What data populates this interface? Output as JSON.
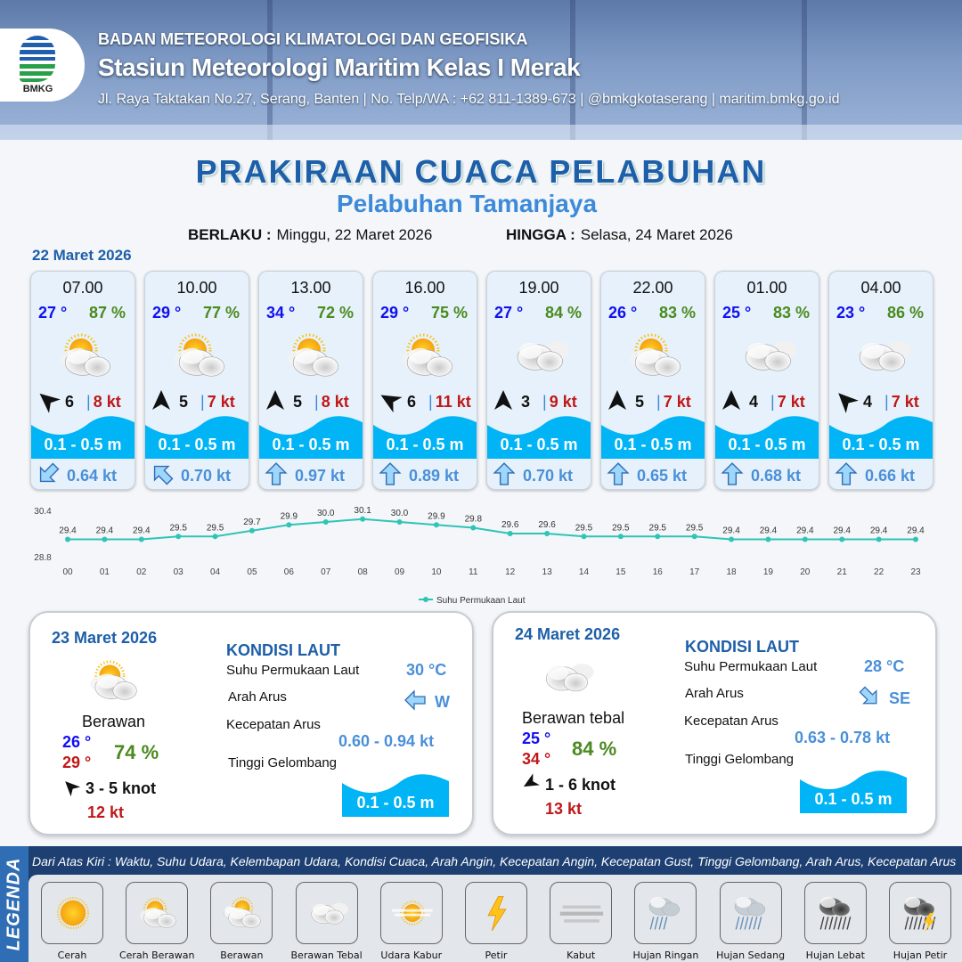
{
  "header": {
    "agency": "BADAN METEOROLOGI KLIMATOLOGI DAN GEOFISIKA",
    "station": "Stasiun Meteorologi Maritim Kelas I Merak",
    "address": "Jl. Raya Taktakan No.27, Serang, Banten | No. Telp/WA : +62 811-1389-673 | @bmkgkotaserang | maritim.bmkg.go.id",
    "logo_text": "BMKG"
  },
  "title": "PRAKIRAAN CUACA PELABUHAN",
  "subtitle": "Pelabuhan Tamanjaya",
  "validity": {
    "from_label": "BERLAKU :",
    "from": "Minggu, 22 Maret 2026",
    "to_label": "HINGGA :",
    "to": "Selasa, 24 Maret 2026"
  },
  "day1": {
    "date": "22 Maret 2026",
    "cards": [
      {
        "time": "07.00",
        "temp": "27 °",
        "rh": "87 %",
        "icon": "cerah-berawan",
        "wind_dir_deg": -50,
        "wind": "6",
        "gust": "8 kt",
        "wave": "0.1 - 0.5 m",
        "current_dir_deg": 225,
        "current": "0.64 kt"
      },
      {
        "time": "10.00",
        "temp": "29 °",
        "rh": "77 %",
        "icon": "cerah-berawan",
        "wind_dir_deg": 0,
        "wind": "5",
        "gust": "7 kt",
        "wave": "0.1 - 0.5 m",
        "current_dir_deg": 315,
        "current": "0.70 kt"
      },
      {
        "time": "13.00",
        "temp": "34 °",
        "rh": "72 %",
        "icon": "cerah-berawan",
        "wind_dir_deg": 0,
        "wind": "5",
        "gust": "8 kt",
        "wave": "0.1 - 0.5 m",
        "current_dir_deg": 0,
        "current": "0.97 kt"
      },
      {
        "time": "16.00",
        "temp": "29 °",
        "rh": "75 %",
        "icon": "cerah-berawan",
        "wind_dir_deg": -60,
        "wind": "6",
        "gust": "11 kt",
        "wave": "0.1 - 0.5 m",
        "current_dir_deg": 0,
        "current": "0.89 kt"
      },
      {
        "time": "19.00",
        "temp": "27 °",
        "rh": "84 %",
        "icon": "berawan-tebal",
        "wind_dir_deg": 0,
        "wind": "3",
        "gust": "9 kt",
        "wave": "0.1 - 0.5 m",
        "current_dir_deg": 0,
        "current": "0.70 kt"
      },
      {
        "time": "22.00",
        "temp": "26 °",
        "rh": "83 %",
        "icon": "cerah-berawan",
        "wind_dir_deg": 0,
        "wind": "5",
        "gust": "7 kt",
        "wave": "0.1 - 0.5 m",
        "current_dir_deg": 0,
        "current": "0.65 kt"
      },
      {
        "time": "01.00",
        "temp": "25 °",
        "rh": "83 %",
        "icon": "berawan-tebal",
        "wind_dir_deg": 0,
        "wind": "4",
        "gust": "7 kt",
        "wave": "0.1 - 0.5 m",
        "current_dir_deg": 0,
        "current": "0.68 kt"
      },
      {
        "time": "04.00",
        "temp": "23 °",
        "rh": "86 %",
        "icon": "berawan-tebal",
        "wind_dir_deg": -45,
        "wind": "4",
        "gust": "7 kt",
        "wave": "0.1 - 0.5 m",
        "current_dir_deg": 0,
        "current": "0.66 kt"
      }
    ]
  },
  "chart_data": {
    "type": "line",
    "x": [
      "00",
      "01",
      "02",
      "03",
      "04",
      "05",
      "06",
      "07",
      "08",
      "09",
      "10",
      "11",
      "12",
      "13",
      "14",
      "15",
      "16",
      "17",
      "18",
      "19",
      "20",
      "21",
      "22",
      "23"
    ],
    "series": [
      {
        "name": "Suhu Permukaan Laut",
        "values": [
          29.4,
          29.4,
          29.4,
          29.5,
          29.5,
          29.7,
          29.9,
          30.0,
          30.1,
          30.0,
          29.9,
          29.8,
          29.6,
          29.6,
          29.5,
          29.5,
          29.5,
          29.5,
          29.4,
          29.4,
          29.4,
          29.4,
          29.4,
          29.4
        ],
        "color": "#2ec4b6"
      }
    ],
    "ylim": [
      28.8,
      30.4
    ],
    "yticks": [
      "30.4",
      "28.8"
    ],
    "legend": "bottom",
    "grid": false
  },
  "panels": [
    {
      "date": "23 Maret 2026",
      "icon": "cerah-berawan",
      "condition": "Berawan",
      "tmin": "26 °",
      "tmax": "29 °",
      "rh": "74 %",
      "wind_dir_deg": -45,
      "wind": "3  - 5 knot",
      "gust": "12 kt",
      "sea_title": "KONDISI LAUT",
      "sst_label": "Suhu Permukaan Laut",
      "sst": "30 °C",
      "cur_dir_label": "Arah Arus",
      "cur_dir": "W",
      "cur_dir_deg": 270,
      "cur_speed_label": "Kecepatan Arus",
      "cur_speed": "0.60 - 0.94 kt",
      "wave_label": "Tinggi Gelombang",
      "wave": "0.1 - 0.5 m"
    },
    {
      "date": "24 Maret 2026",
      "icon": "berawan-tebal",
      "condition": "Berawan tebal",
      "tmin": "25 °",
      "tmax": "34 °",
      "rh": "84 %",
      "wind_dir_deg": -120,
      "wind": "1  - 6 knot",
      "gust": "13 kt",
      "sea_title": "KONDISI LAUT",
      "sst_label": "Suhu Permukaan Laut",
      "sst": "28 °C",
      "cur_dir_label": "Arah Arus",
      "cur_dir": "SE",
      "cur_dir_deg": 135,
      "cur_speed_label": "Kecepatan Arus",
      "cur_speed": "0.63  - 0.78 kt",
      "wave_label": "Tinggi Gelombang",
      "wave": "0.1 - 0.5 m"
    }
  ],
  "legend": {
    "title": "LEGENDA",
    "description": "Dari Atas Kiri : Waktu, Suhu Udara, Kelembapan Udara, Kondisi Cuaca, Arah Angin, Kecepatan Angin, Kecepatan Gust, Tinggi Gelombang, Arah Arus, Kecepatan Arus",
    "items": [
      {
        "label": "Cerah",
        "icon": "cerah"
      },
      {
        "label": "Cerah Berawan",
        "icon": "cerah-berawan"
      },
      {
        "label": "Berawan",
        "icon": "berawan"
      },
      {
        "label": "Berawan Tebal",
        "icon": "berawan-tebal"
      },
      {
        "label": "Udara Kabur",
        "icon": "udara-kabur"
      },
      {
        "label": "Petir",
        "icon": "petir"
      },
      {
        "label": "Kabut",
        "icon": "kabut"
      },
      {
        "label": "Hujan Ringan",
        "icon": "hujan-ringan"
      },
      {
        "label": "Hujan Sedang",
        "icon": "hujan-sedang"
      },
      {
        "label": "Hujan Lebat",
        "icon": "hujan-lebat"
      },
      {
        "label": "Hujan Petir",
        "icon": "hujan-petir"
      }
    ]
  },
  "colors": {
    "title": "#1d5fa8",
    "wave": "#00b4f5",
    "legend_bar": "#1d3f72"
  }
}
